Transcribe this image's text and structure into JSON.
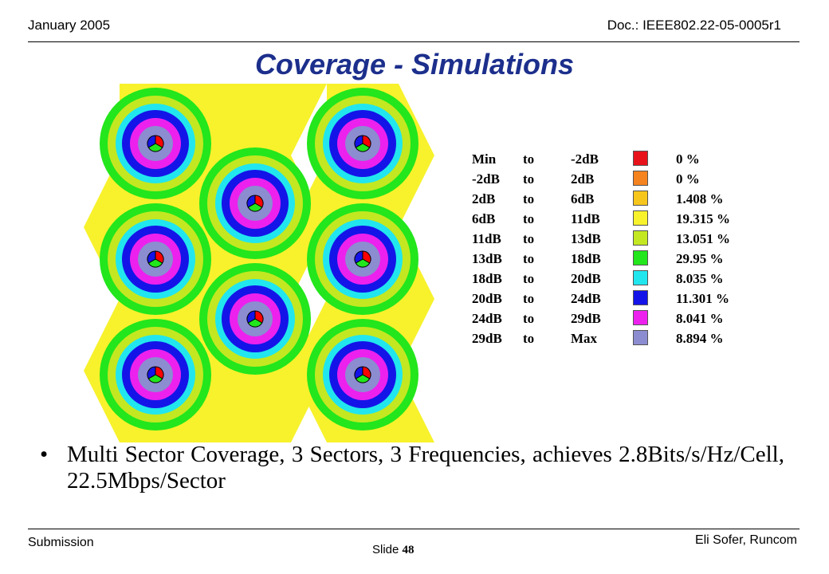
{
  "header": {
    "date": "January 2005",
    "doc_id": "Doc.: IEEE802.22-05-0005r1"
  },
  "title": "Coverage - Simulations",
  "legend": {
    "rows": [
      {
        "from": "Min",
        "to_word": "to",
        "to": "-2dB",
        "color": "#e8121b",
        "percent": "0 %"
      },
      {
        "from": "-2dB",
        "to_word": "to",
        "to": "2dB",
        "color": "#f5831f",
        "percent": "0 %"
      },
      {
        "from": "2dB",
        "to_word": "to",
        "to": "6dB",
        "color": "#f7c61c",
        "percent": "1.408 %"
      },
      {
        "from": "6dB",
        "to_word": "to",
        "to": "11dB",
        "color": "#f7f22c",
        "percent": "19.315 %"
      },
      {
        "from": "11dB",
        "to_word": "to",
        "to": "13dB",
        "color": "#c3e821",
        "percent": "13.051 %"
      },
      {
        "from": "13dB",
        "to_word": "to",
        "to": "18dB",
        "color": "#23e61c",
        "percent": "29.95 %"
      },
      {
        "from": "18dB",
        "to_word": "to",
        "to": "20dB",
        "color": "#21e6ee",
        "percent": "8.035 %"
      },
      {
        "from": "20dB",
        "to_word": "to",
        "to": "24dB",
        "color": "#1414e8",
        "percent": "11.301 %"
      },
      {
        "from": "24dB",
        "to_word": "to",
        "to": "29dB",
        "color": "#ec21ee",
        "percent": "8.041 %"
      },
      {
        "from": "29dB",
        "to_word": "to",
        "to": "Max",
        "color": "#8c8cd0",
        "percent": "8.894 %"
      }
    ]
  },
  "bullet": "Multi Sector Coverage, 3 Sectors, 3 Frequencies, achieves 2.8Bits/s/Hz/Cell, 22.5Mbps/Sector",
  "footer": {
    "left": "Submission",
    "slide_label": "Slide",
    "slide_number": "48",
    "right": "Eli Sofer, Runcom"
  }
}
